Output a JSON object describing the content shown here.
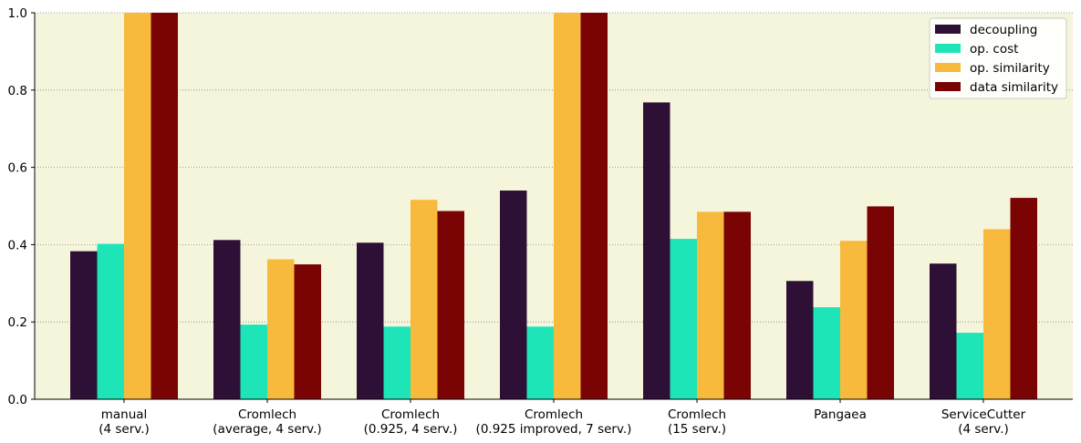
{
  "chart_data": {
    "type": "bar",
    "categories": [
      [
        "manual",
        "(4 serv.)"
      ],
      [
        "Cromlech",
        "(average, 4 serv.)"
      ],
      [
        "Cromlech",
        "(0.925, 4 serv.)"
      ],
      [
        "Cromlech",
        "(0.925 improved, 7 serv.)"
      ],
      [
        "Cromlech",
        "(15 serv.)"
      ],
      [
        "Pangaea"
      ],
      [
        "ServiceCutter",
        "(4 serv.)"
      ]
    ],
    "series": [
      {
        "name": "decoupling",
        "color": "#2e1036",
        "values": [
          0.383,
          0.412,
          0.405,
          0.54,
          0.768,
          0.306,
          0.351
        ]
      },
      {
        "name": "op. cost",
        "color": "#1de5b8",
        "values": [
          0.402,
          0.193,
          0.188,
          0.188,
          0.415,
          0.238,
          0.172
        ]
      },
      {
        "name": "op. similarity",
        "color": "#f8ba3c",
        "values": [
          1.0,
          0.362,
          0.516,
          1.0,
          0.485,
          0.41,
          0.44
        ]
      },
      {
        "name": "data similarity",
        "color": "#7a0304",
        "values": [
          1.0,
          0.349,
          0.487,
          1.0,
          0.485,
          0.499,
          0.521
        ]
      }
    ],
    "ylim": [
      0,
      1.0
    ],
    "yticks": [
      "0.0",
      "0.2",
      "0.4",
      "0.6",
      "0.8",
      "1.0"
    ],
    "ytick_values": [
      0,
      0.2,
      0.4,
      0.6,
      0.8,
      1.0
    ],
    "grid": "horizontal-dotted",
    "legend_position": "top-right",
    "plot_background": "#f5f5dc"
  }
}
